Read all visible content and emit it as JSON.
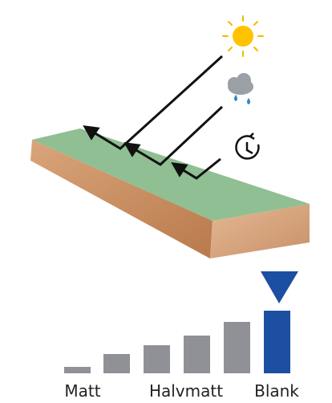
{
  "scale": {
    "labels": [
      "Matt",
      "Halvmatt",
      "Blank"
    ]
  }
}
